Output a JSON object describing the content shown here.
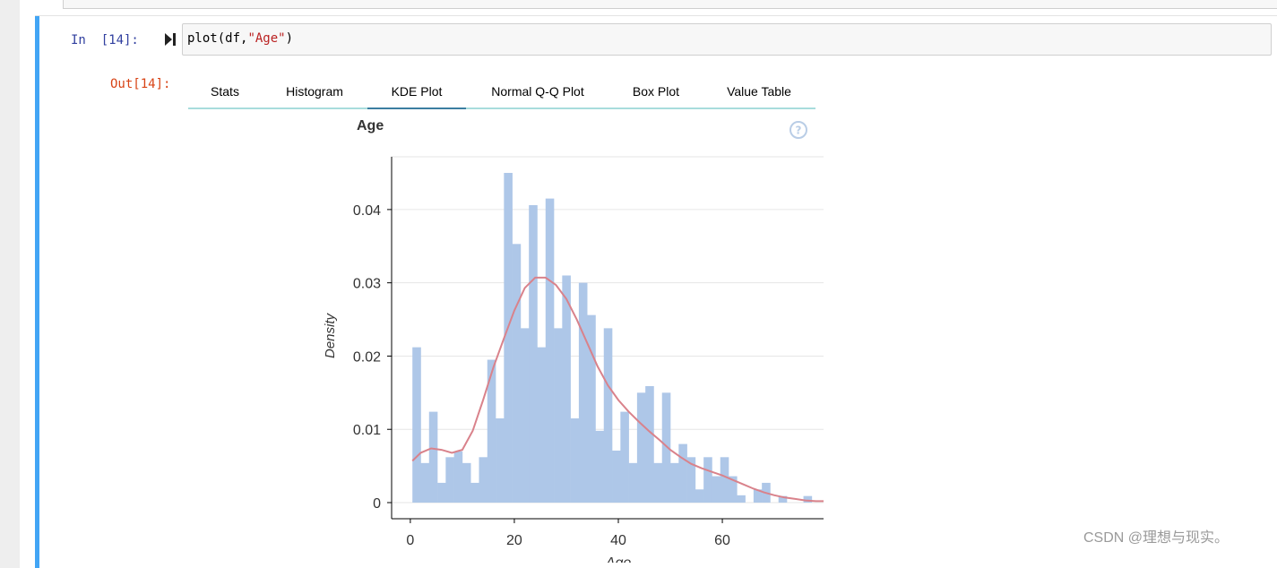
{
  "notebook": {
    "prev_cell_marker": "· · ·",
    "in_prompt": "In  [14]:",
    "code": {
      "prefix": "plot(df,",
      "string": "\"Age\"",
      "suffix": ")"
    },
    "out_prompt": "Out[14]:"
  },
  "tabs": [
    {
      "label": "Stats",
      "active": false
    },
    {
      "label": "Histogram",
      "active": false
    },
    {
      "label": "KDE Plot",
      "active": true
    },
    {
      "label": "Normal Q-Q Plot",
      "active": false
    },
    {
      "label": "Box Plot",
      "active": false
    },
    {
      "label": "Value Table",
      "active": false
    }
  ],
  "watermark": "CSDN @理想与现实。",
  "colors": {
    "selector_bar": "#42a5f5",
    "bar_fill": "#aec7e8",
    "kde_line": "#d9828b",
    "tab_underline": "#a8dcdc",
    "tab_active": "#3b7ea1"
  },
  "chart_data": {
    "type": "bar",
    "title": "Age",
    "xlabel": "Age",
    "ylabel": "Density",
    "xlim": [
      -3.6,
      83.6
    ],
    "ylim": [
      -0.0022,
      0.0472
    ],
    "x_ticks": [
      0,
      20,
      40,
      60
    ],
    "y_ticks": [
      0,
      0.01,
      0.02,
      0.03,
      0.04
    ],
    "y_tick_labels": [
      "0",
      "0.01",
      "0.02",
      "0.03",
      "0.04"
    ],
    "bin_width": 1.6,
    "bin_start": 0.4,
    "histogram_density": [
      0.0212,
      0.0054,
      0.0124,
      0.0027,
      0.0062,
      0.007,
      0.0054,
      0.0027,
      0.0062,
      0.0195,
      0.0115,
      0.045,
      0.0353,
      0.0238,
      0.0406,
      0.0212,
      0.0415,
      0.0238,
      0.031,
      0.0115,
      0.03,
      0.0256,
      0.0098,
      0.0238,
      0.0071,
      0.0124,
      0.0054,
      0.015,
      0.0159,
      0.0054,
      0.015,
      0.0054,
      0.008,
      0.0062,
      0.0018,
      0.0062,
      0.0036,
      0.0062,
      0.0036,
      0.001,
      0.0,
      0.0018,
      0.0027,
      0.0,
      0.0009,
      0.0,
      0.0,
      0.0009
    ],
    "kde_x": [
      0.4,
      2,
      4,
      6,
      8,
      10,
      12,
      14,
      16,
      18,
      20,
      22,
      24,
      26,
      28,
      30,
      32,
      34,
      36,
      38,
      40,
      42,
      44,
      46,
      48,
      50,
      52,
      54,
      56,
      58,
      60,
      62,
      64,
      66,
      68,
      70,
      72,
      74,
      76,
      78,
      80
    ],
    "kde_y": [
      0.0057,
      0.0068,
      0.0074,
      0.0072,
      0.0068,
      0.0072,
      0.0098,
      0.014,
      0.0185,
      0.0224,
      0.0262,
      0.0293,
      0.0307,
      0.0307,
      0.0297,
      0.0278,
      0.025,
      0.0218,
      0.0186,
      0.016,
      0.014,
      0.0124,
      0.011,
      0.0097,
      0.0085,
      0.0072,
      0.0062,
      0.0053,
      0.0047,
      0.0042,
      0.0037,
      0.0031,
      0.0025,
      0.0019,
      0.0014,
      0.001,
      0.0007,
      0.0005,
      0.0003,
      0.0002,
      0.0002
    ]
  }
}
